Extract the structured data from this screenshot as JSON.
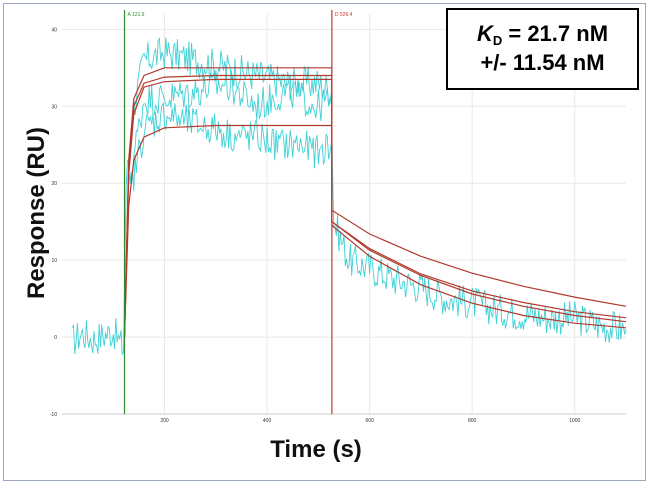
{
  "chart_data": {
    "type": "line",
    "title": "",
    "xlabel": "Time (s)",
    "ylabel": "Response (RU)",
    "xlim": [
      0,
      1100
    ],
    "ylim": [
      -10,
      42
    ],
    "x_ticks": [
      200,
      400,
      600,
      800,
      1000
    ],
    "y_ticks": [
      -10,
      0,
      10,
      20,
      30,
      40
    ],
    "grid": true,
    "markers": [
      {
        "label": "A 121.9",
        "x": 121.9,
        "color": "#2e8b2e"
      },
      {
        "label": "D 526.4",
        "x": 526.4,
        "color": "#c0392b"
      }
    ],
    "annotation": {
      "kd_symbol": "K",
      "kd_subscript": "D",
      "kd_value": " = 21.7 nM",
      "kd_error": "+/- 11.54 nM"
    },
    "series": [
      {
        "color": "#3fd1d6",
        "points": [
          [
            20,
            -0.5
          ],
          [
            40,
            0.5
          ],
          [
            60,
            -0.3
          ],
          [
            80,
            0.2
          ],
          [
            100,
            0.8
          ],
          [
            120,
            -1.5
          ],
          [
            125,
            20
          ],
          [
            140,
            30
          ],
          [
            160,
            36
          ],
          [
            200,
            37
          ],
          [
            260,
            36
          ],
          [
            320,
            35
          ],
          [
            380,
            34
          ],
          [
            440,
            33
          ],
          [
            500,
            33
          ],
          [
            525,
            32
          ],
          [
            530,
            15
          ],
          [
            560,
            10
          ],
          [
            600,
            9
          ],
          [
            650,
            7.5
          ],
          [
            700,
            6.5
          ],
          [
            750,
            5
          ],
          [
            800,
            4.5
          ],
          [
            850,
            3.5
          ],
          [
            900,
            3
          ],
          [
            950,
            2.5
          ],
          [
            1000,
            2.5
          ],
          [
            1050,
            1.5
          ],
          [
            1100,
            1
          ]
        ]
      },
      {
        "color": "#3fd1d6",
        "points": [
          [
            130,
            20
          ],
          [
            160,
            31
          ],
          [
            200,
            31
          ],
          [
            260,
            32
          ],
          [
            320,
            33
          ],
          [
            380,
            30
          ],
          [
            440,
            32
          ],
          [
            500,
            30
          ],
          [
            525,
            31
          ]
        ]
      },
      {
        "color": "#3fd1d6",
        "points": [
          [
            130,
            18
          ],
          [
            160,
            27
          ],
          [
            200,
            29
          ],
          [
            240,
            28
          ],
          [
            300,
            27
          ],
          [
            340,
            26
          ],
          [
            380,
            26
          ],
          [
            420,
            25
          ],
          [
            460,
            25
          ],
          [
            500,
            24
          ],
          [
            525,
            25
          ]
        ]
      },
      {
        "color": "#b03a2e",
        "points": [
          [
            121.9,
            0
          ],
          [
            130,
            23
          ],
          [
            140,
            31
          ],
          [
            160,
            34
          ],
          [
            200,
            35
          ],
          [
            300,
            35
          ],
          [
            400,
            35
          ],
          [
            526.4,
            35
          ],
          [
            526.4,
            16.5
          ],
          [
            600,
            13.4
          ],
          [
            700,
            10.5
          ],
          [
            800,
            8.3
          ],
          [
            900,
            6.6
          ],
          [
            1000,
            5.2
          ],
          [
            1100,
            4
          ]
        ]
      },
      {
        "color": "#b03a2e",
        "points": [
          [
            121.9,
            0
          ],
          [
            130,
            22
          ],
          [
            140,
            30
          ],
          [
            160,
            33
          ],
          [
            200,
            33.8
          ],
          [
            300,
            34
          ],
          [
            400,
            34
          ],
          [
            526.4,
            34
          ],
          [
            526.4,
            15
          ],
          [
            600,
            11.5
          ],
          [
            700,
            8.2
          ],
          [
            800,
            6
          ],
          [
            900,
            4.5
          ],
          [
            1000,
            3.3
          ],
          [
            1100,
            2.5
          ]
        ]
      },
      {
        "color": "#b03a2e",
        "points": [
          [
            121.9,
            0
          ],
          [
            130,
            21
          ],
          [
            140,
            29
          ],
          [
            160,
            32.5
          ],
          [
            200,
            33.2
          ],
          [
            300,
            33.5
          ],
          [
            400,
            33.5
          ],
          [
            526.4,
            33.5
          ],
          [
            526.4,
            15
          ],
          [
            600,
            11.3
          ],
          [
            700,
            8
          ],
          [
            800,
            5.6
          ],
          [
            900,
            4
          ],
          [
            1000,
            2.8
          ],
          [
            1100,
            2
          ]
        ]
      },
      {
        "color": "#b03a2e",
        "points": [
          [
            121.9,
            0
          ],
          [
            130,
            17
          ],
          [
            140,
            23
          ],
          [
            160,
            26
          ],
          [
            200,
            27.2
          ],
          [
            300,
            27.5
          ],
          [
            400,
            27.5
          ],
          [
            526.4,
            27.5
          ],
          [
            526.4,
            14.5
          ],
          [
            600,
            10.5
          ],
          [
            700,
            6.8
          ],
          [
            800,
            4.4
          ],
          [
            900,
            2.8
          ],
          [
            1000,
            1.8
          ],
          [
            1100,
            1.2
          ]
        ]
      }
    ]
  }
}
